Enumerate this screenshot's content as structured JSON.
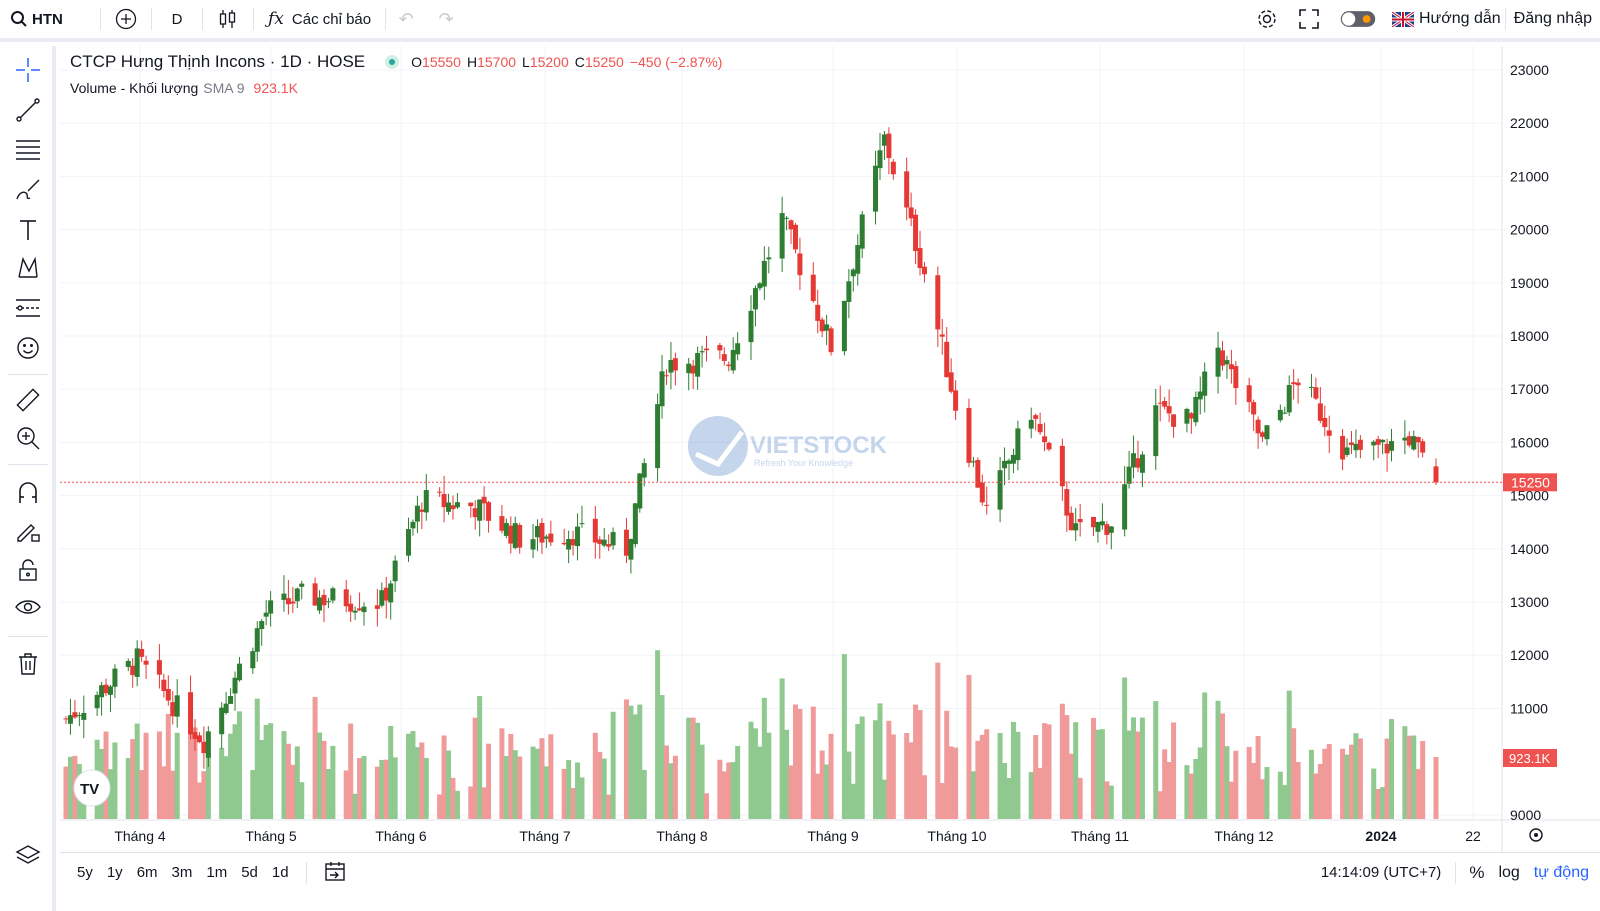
{
  "topbar": {
    "symbol": "HTN",
    "interval": "D",
    "indicators_label": "Các chỉ báo",
    "guide_label": "Hướng dẫn",
    "login_label": "Đăng nhập"
  },
  "legend": {
    "title": "CTCP Hưng Thịnh Incons · 1D · HOSE",
    "o_label": "O",
    "o_value": "15550",
    "h_label": "H",
    "h_value": "15700",
    "l_label": "L",
    "l_value": "15200",
    "c_label": "C",
    "c_value": "15250",
    "change": "−450 (−2.87%)",
    "volume_label": "Volume - Khối lượng",
    "sma_label": "SMA 9",
    "volume_value": "923.1K"
  },
  "watermark": {
    "brand": "VIETSTOCK",
    "tagline": "Refresh Your Knowledge"
  },
  "bottombar": {
    "ranges": [
      "5y",
      "1y",
      "6m",
      "3m",
      "1m",
      "5d",
      "1d"
    ],
    "time": "14:14:09 (UTC+7)",
    "percent_label": "%",
    "log_label": "log",
    "auto_label": "tự động"
  },
  "colors": {
    "up": "#26a69a",
    "down": "#ef5350",
    "candle_up": "#2e7d32",
    "candle_down": "#e53935",
    "accent": "#2962ff"
  },
  "chart_data": {
    "type": "candlestick",
    "price_axis": {
      "ticks": [
        23000,
        22000,
        21000,
        20000,
        19000,
        18000,
        17000,
        16000,
        15000,
        14000,
        13000,
        12000,
        11000,
        9000
      ],
      "range": [
        9000,
        23000
      ],
      "last_price_label": "15250",
      "last_volume_label": "923.1K"
    },
    "time_axis": {
      "labels": [
        "Tháng 4",
        "Tháng 5",
        "Tháng 6",
        "Tháng 7",
        "Tháng 8",
        "Tháng 9",
        "Tháng 10",
        "Tháng 11",
        "Tháng 12",
        "2024",
        "22"
      ]
    },
    "keypoints": [
      {
        "date": "2023-03-20",
        "close": 10800
      },
      {
        "date": "2023-04-05",
        "close": 11900
      },
      {
        "date": "2023-04-20",
        "close": 10400
      },
      {
        "date": "2023-05-04",
        "close": 12800
      },
      {
        "date": "2023-05-12",
        "close": 13100
      },
      {
        "date": "2023-05-30",
        "close": 13000
      },
      {
        "date": "2023-06-08",
        "close": 14900
      },
      {
        "date": "2023-06-20",
        "close": 14800
      },
      {
        "date": "2023-06-30",
        "close": 14200
      },
      {
        "date": "2023-07-12",
        "close": 14300
      },
      {
        "date": "2023-07-24",
        "close": 14000
      },
      {
        "date": "2023-08-02",
        "close": 17500
      },
      {
        "date": "2023-08-16",
        "close": 17600
      },
      {
        "date": "2023-08-28",
        "close": 20200
      },
      {
        "date": "2023-09-08",
        "close": 17800
      },
      {
        "date": "2023-09-20",
        "close": 21700
      },
      {
        "date": "2023-09-29",
        "close": 19200
      },
      {
        "date": "2023-10-06",
        "close": 16700
      },
      {
        "date": "2023-10-13",
        "close": 14700
      },
      {
        "date": "2023-10-23",
        "close": 16600
      },
      {
        "date": "2023-11-02",
        "close": 14300
      },
      {
        "date": "2023-11-10",
        "close": 14500
      },
      {
        "date": "2023-11-20",
        "close": 16600
      },
      {
        "date": "2023-11-28",
        "close": 16400
      },
      {
        "date": "2023-12-04",
        "close": 17800
      },
      {
        "date": "2023-12-14",
        "close": 16000
      },
      {
        "date": "2023-12-22",
        "close": 17200
      },
      {
        "date": "2024-01-02",
        "close": 15800
      },
      {
        "date": "2024-01-10",
        "close": 15900
      },
      {
        "date": "2024-01-16",
        "close": 16100
      },
      {
        "date": "2024-01-22",
        "close": 15250
      }
    ]
  }
}
